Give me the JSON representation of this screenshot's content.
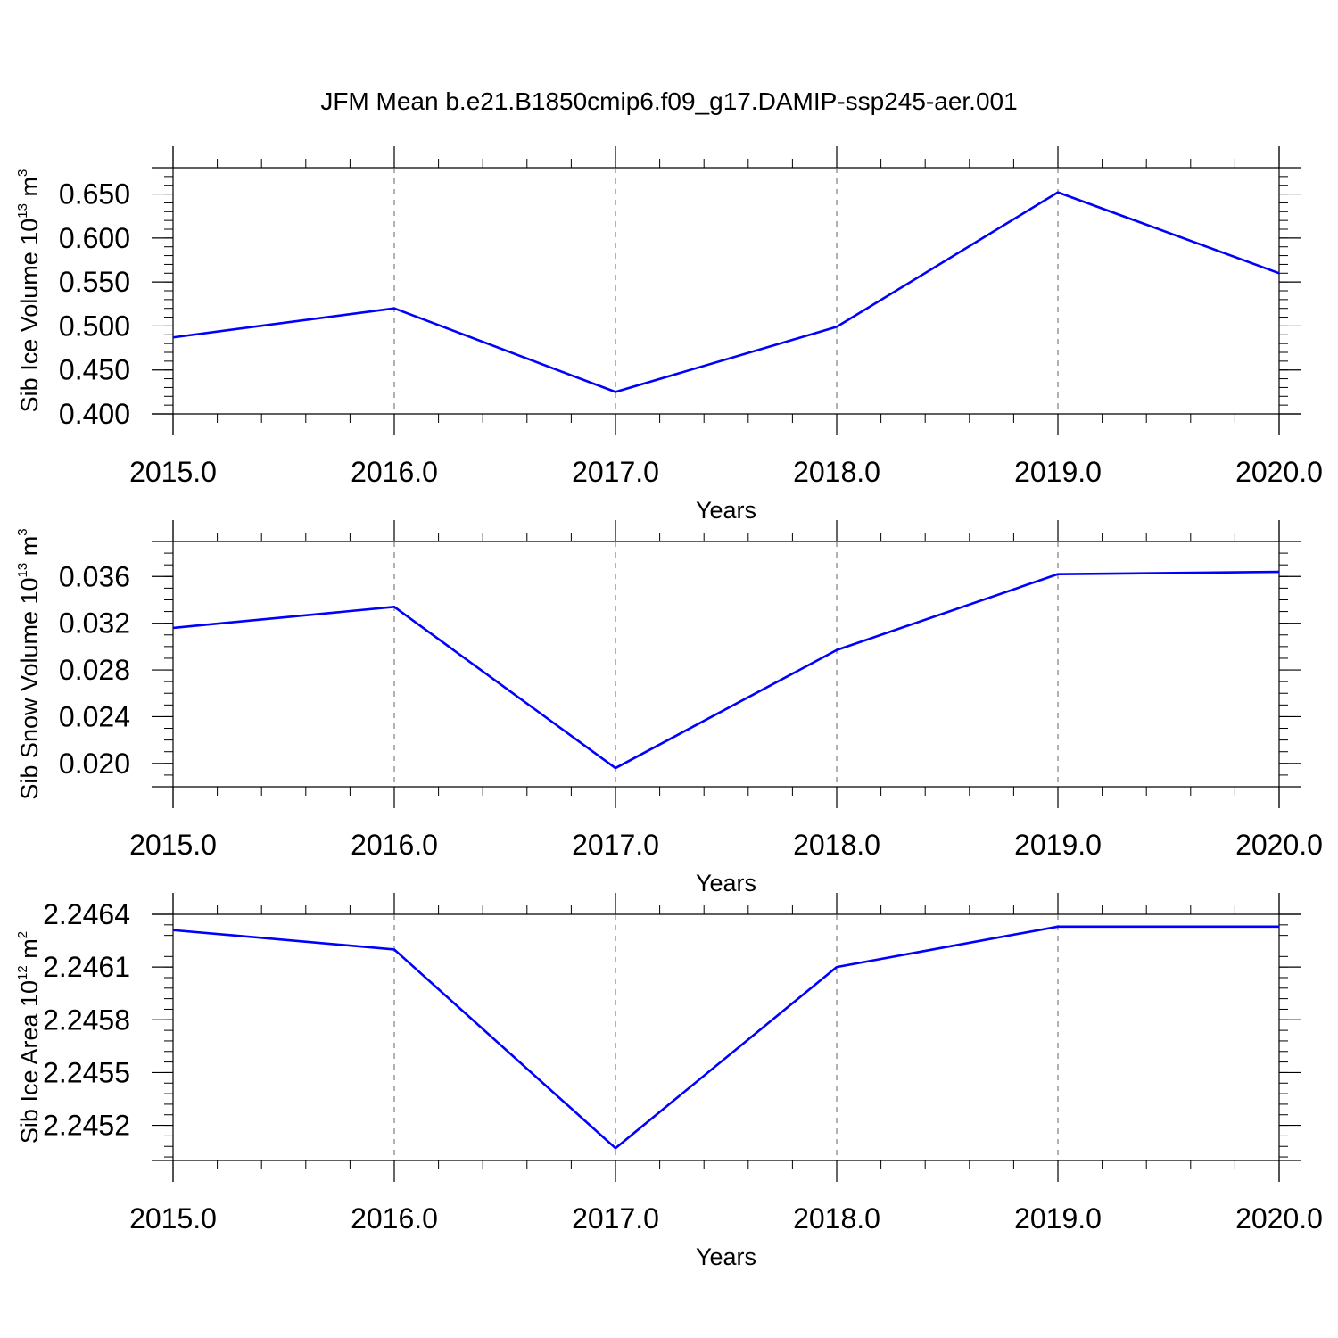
{
  "title": "JFM Mean b.e21.B1850cmip6.f09_g17.DAMIP-ssp245-aer.001",
  "line_color": "#0000ff",
  "chart_data": [
    {
      "type": "line",
      "xlabel": "Years",
      "ylabel": {
        "text": "Sib Ice Volume 10",
        "sup1": "13",
        "mid": " m",
        "sup2": "3"
      },
      "xlim": [
        2015,
        2020
      ],
      "ylim": [
        0.4,
        0.68
      ],
      "xticks": [
        2015,
        2016,
        2017,
        2018,
        2019,
        2020
      ],
      "xtick_labels": [
        "2015.0",
        "2016.0",
        "2017.0",
        "2018.0",
        "2019.0",
        "2020.0"
      ],
      "yticks": [
        0.4,
        0.45,
        0.5,
        0.55,
        0.6,
        0.65
      ],
      "ytick_labels": [
        "0.400",
        "0.450",
        "0.500",
        "0.550",
        "0.600",
        "0.650"
      ],
      "yminor_step": 0.01,
      "x": [
        2015,
        2016,
        2017,
        2018,
        2019,
        2020
      ],
      "y": [
        0.487,
        0.52,
        0.425,
        0.499,
        0.652,
        0.56
      ]
    },
    {
      "type": "line",
      "xlabel": "Years",
      "ylabel": {
        "text": "Sib Snow Volume 10",
        "sup1": "13",
        "mid": " m",
        "sup2": "3"
      },
      "xlim": [
        2015,
        2020
      ],
      "ylim": [
        0.018,
        0.039
      ],
      "xticks": [
        2015,
        2016,
        2017,
        2018,
        2019,
        2020
      ],
      "xtick_labels": [
        "2015.0",
        "2016.0",
        "2017.0",
        "2018.0",
        "2019.0",
        "2020.0"
      ],
      "yticks": [
        0.02,
        0.024,
        0.028,
        0.032,
        0.036
      ],
      "ytick_labels": [
        "0.020",
        "0.024",
        "0.028",
        "0.032",
        "0.036"
      ],
      "yminor_step": 0.001,
      "x": [
        2015,
        2016,
        2017,
        2018,
        2019,
        2020
      ],
      "y": [
        0.0316,
        0.0334,
        0.0196,
        0.0297,
        0.0362,
        0.0364
      ]
    },
    {
      "type": "line",
      "xlabel": "Years",
      "ylabel": {
        "text": "Sib Ice Area 10",
        "sup1": "12",
        "mid": " m",
        "sup2": "2"
      },
      "xlim": [
        2015,
        2020
      ],
      "ylim": [
        2.245,
        2.2464
      ],
      "xticks": [
        2015,
        2016,
        2017,
        2018,
        2019,
        2020
      ],
      "xtick_labels": [
        "2015.0",
        "2016.0",
        "2017.0",
        "2018.0",
        "2019.0",
        "2020.0"
      ],
      "yticks": [
        2.2452,
        2.2455,
        2.2458,
        2.2461,
        2.2464
      ],
      "ytick_labels": [
        "2.2452",
        "2.2455",
        "2.2458",
        "2.2461",
        "2.2464"
      ],
      "yminor_step": 6e-05,
      "x": [
        2015,
        2016,
        2017,
        2018,
        2019,
        2020
      ],
      "y": [
        2.24631,
        2.2462,
        2.24507,
        2.2461,
        2.24633,
        2.24633
      ]
    }
  ]
}
